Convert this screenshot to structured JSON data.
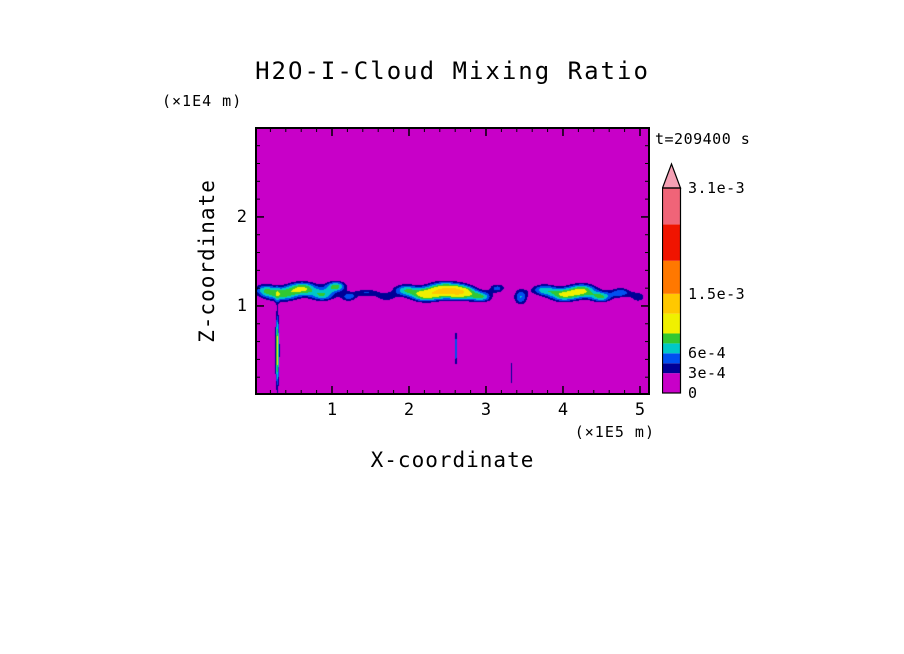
{
  "figure": {
    "background": "#FFFFFF"
  },
  "chart_data": {
    "type": "heatmap",
    "variant": "filled-contour",
    "title": "H2O-I-Cloud Mixing Ratio",
    "time_label": "t=209400 s",
    "xlabel": "X-coordinate",
    "x_units": "(×1E5 m)",
    "ylabel": "Z-coordinate",
    "y_units": "(×1E4 m)",
    "xlim": [
      0,
      5.13
    ],
    "ylim": [
      0,
      3.01
    ],
    "x_ticks": [
      1,
      2,
      3,
      4,
      5
    ],
    "y_ticks": [
      1,
      2
    ],
    "minor_tick_step": 0.2,
    "grid": false,
    "background_value": 0,
    "colorbar": {
      "min": 0,
      "max": 0.0031,
      "orientation": "vertical",
      "position": "right",
      "over_color": "#F5A0B4",
      "tick_labels": [
        {
          "value": 0.0031,
          "label": "3.1e-3"
        },
        {
          "value": 0.0015,
          "label": "1.5e-3"
        },
        {
          "value": 0.0006,
          "label": "6e-4"
        },
        {
          "value": 0.0003,
          "label": "3e-4"
        },
        {
          "value": 0,
          "label": "0"
        }
      ],
      "segments": [
        {
          "from": 0,
          "to": 0.0003,
          "color": "#C800C8"
        },
        {
          "from": 0.0003,
          "to": 0.00045,
          "color": "#000096"
        },
        {
          "from": 0.00045,
          "to": 0.0006,
          "color": "#0050F0"
        },
        {
          "from": 0.0006,
          "to": 0.00075,
          "color": "#00C8C8"
        },
        {
          "from": 0.00075,
          "to": 0.0009,
          "color": "#32C832"
        },
        {
          "from": 0.0009,
          "to": 0.0012,
          "color": "#F0F000"
        },
        {
          "from": 0.0012,
          "to": 0.0015,
          "color": "#FFC800"
        },
        {
          "from": 0.0015,
          "to": 0.002,
          "color": "#FF7800"
        },
        {
          "from": 0.002,
          "to": 0.00255,
          "color": "#F01400"
        },
        {
          "from": 0.00255,
          "to": 0.0031,
          "color": "#F06478"
        }
      ]
    },
    "cloud_features": {
      "band_center_z": 1.15,
      "bumps": [
        {
          "cx": 0.12,
          "cz": 1.18,
          "sx": 0.1,
          "sz": 0.055,
          "a": 0.00055
        },
        {
          "cx": 0.35,
          "cz": 1.13,
          "sx": 0.16,
          "sz": 0.06,
          "a": 0.0008
        },
        {
          "cx": 0.62,
          "cz": 1.2,
          "sx": 0.14,
          "sz": 0.055,
          "a": 0.00085
        },
        {
          "cx": 0.88,
          "cz": 1.12,
          "sx": 0.12,
          "sz": 0.05,
          "a": 0.0007
        },
        {
          "cx": 1.05,
          "cz": 1.22,
          "sx": 0.1,
          "sz": 0.045,
          "a": 0.0008
        },
        {
          "cx": 1.22,
          "cz": 1.1,
          "sx": 0.08,
          "sz": 0.04,
          "a": 0.0005
        },
        {
          "cx": 1.45,
          "cz": 1.15,
          "sx": 0.12,
          "sz": 0.035,
          "a": 0.00045
        },
        {
          "cx": 1.7,
          "cz": 1.1,
          "sx": 0.1,
          "sz": 0.04,
          "a": 0.0004
        },
        {
          "cx": 1.95,
          "cz": 1.18,
          "sx": 0.12,
          "sz": 0.05,
          "a": 0.00065
        },
        {
          "cx": 2.2,
          "cz": 1.12,
          "sx": 0.14,
          "sz": 0.055,
          "a": 0.00085
        },
        {
          "cx": 2.45,
          "cz": 1.18,
          "sx": 0.16,
          "sz": 0.065,
          "a": 0.00105
        },
        {
          "cx": 2.7,
          "cz": 1.15,
          "sx": 0.14,
          "sz": 0.06,
          "a": 0.00095
        },
        {
          "cx": 2.95,
          "cz": 1.1,
          "sx": 0.1,
          "sz": 0.045,
          "a": 0.00065
        },
        {
          "cx": 3.15,
          "cz": 1.2,
          "sx": 0.08,
          "sz": 0.04,
          "a": 0.0005
        },
        {
          "cx": 3.45,
          "cz": 1.1,
          "sx": 0.07,
          "sz": 0.07,
          "a": 0.0006
        },
        {
          "cx": 3.75,
          "cz": 1.18,
          "sx": 0.12,
          "sz": 0.05,
          "a": 0.00065
        },
        {
          "cx": 4.0,
          "cz": 1.12,
          "sx": 0.13,
          "sz": 0.055,
          "a": 0.0008
        },
        {
          "cx": 4.25,
          "cz": 1.17,
          "sx": 0.14,
          "sz": 0.06,
          "a": 0.0009
        },
        {
          "cx": 4.5,
          "cz": 1.1,
          "sx": 0.1,
          "sz": 0.045,
          "a": 0.0007
        },
        {
          "cx": 4.75,
          "cz": 1.15,
          "sx": 0.1,
          "sz": 0.045,
          "a": 0.00055
        },
        {
          "cx": 4.98,
          "cz": 1.1,
          "sx": 0.08,
          "sz": 0.05,
          "a": 0.0004
        },
        {
          "cx": 0.29,
          "cz": 0.5,
          "sx": 0.018,
          "sz": 0.3,
          "a": 0.00105
        },
        {
          "cx": 2.61,
          "cz": 0.52,
          "sx": 0.014,
          "sz": 0.15,
          "a": 0.00065
        },
        {
          "cx": 3.33,
          "cz": 0.25,
          "sx": 0.01,
          "sz": 0.15,
          "a": 0.0004
        }
      ]
    }
  }
}
